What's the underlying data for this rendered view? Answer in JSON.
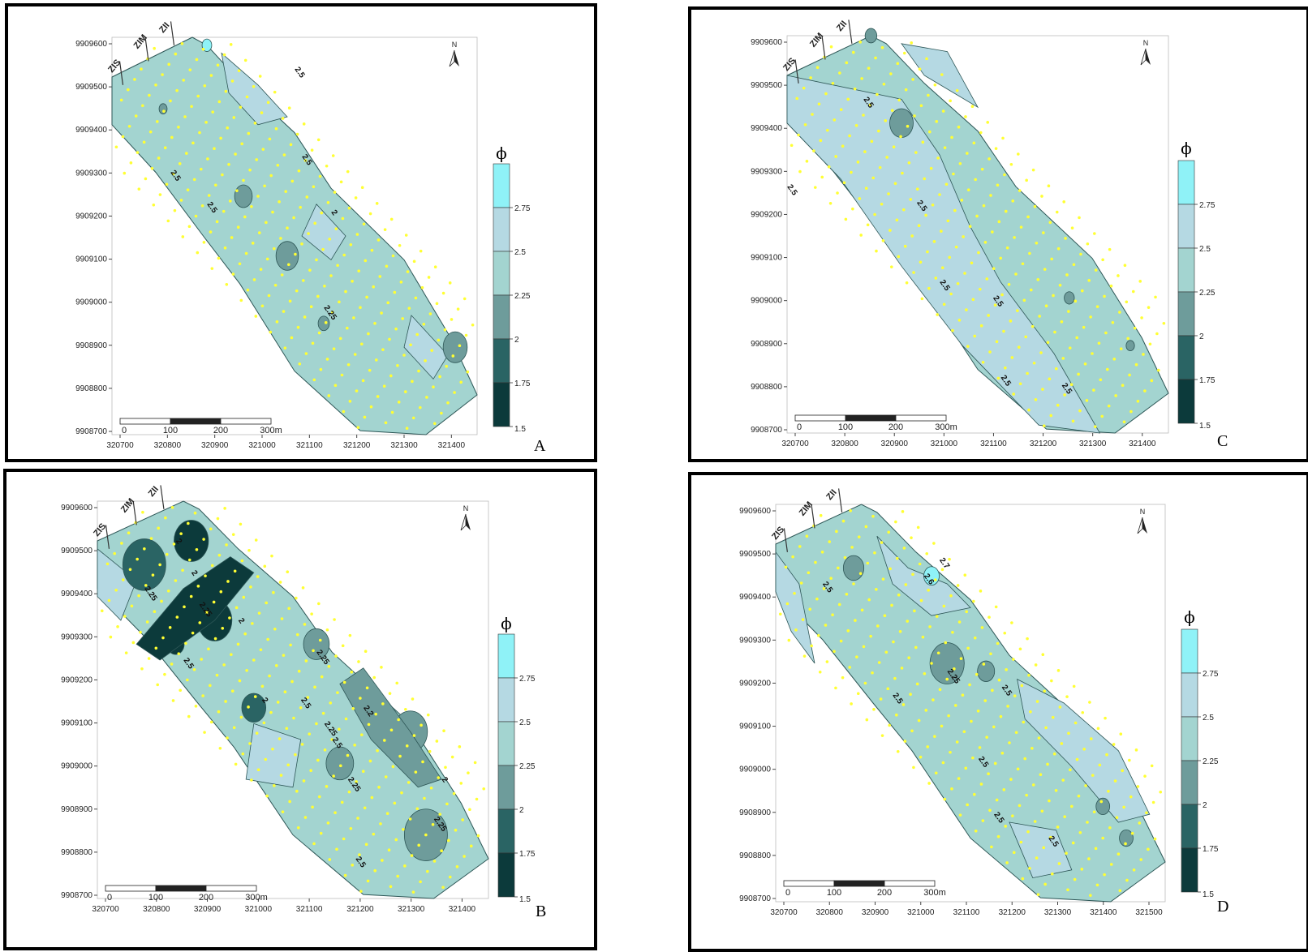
{
  "colors": {
    "c1": "#0c3a3b",
    "c2": "#2a6464",
    "c3": "#6e9c9b",
    "c4": "#a3d4d0",
    "c5": "#b5d9e3",
    "c6": "#8ff2f7",
    "dots": "#ffff33",
    "stroke": "#2d5656"
  },
  "axis": {
    "y_ticks": [
      "9909600",
      "9909500",
      "9909400",
      "9909300",
      "9909200",
      "9909100",
      "9909000",
      "9908900",
      "9908800",
      "9908700"
    ],
    "x_ticks_a": [
      "320700",
      "320800",
      "320900",
      "321000",
      "321100",
      "321200",
      "321300",
      "321400"
    ],
    "x_ticks_d": [
      "320700",
      "320800",
      "320900",
      "321000",
      "321100",
      "321200",
      "321300",
      "321400",
      "321500"
    ]
  },
  "scale_bar": {
    "labels": [
      "0",
      "100",
      "200",
      "300m"
    ]
  },
  "zones": [
    "ZIS",
    "ZIM",
    "ZII"
  ],
  "north_label": "N",
  "legend": {
    "symbol": "ϕ",
    "levels": [
      "2.75",
      "2.5",
      "2.25",
      "2",
      "1.75",
      "1.5"
    ]
  },
  "panels": [
    {
      "letter": "A",
      "contour_labels": [
        "2.5",
        "2.5",
        "2.5",
        "2.5",
        "2",
        "2.25"
      ]
    },
    {
      "letter": "B",
      "contour_labels": [
        "2",
        "2",
        "2.25",
        "2.25",
        "2",
        "2.5",
        "2.25",
        "2",
        "2.5",
        "2.25",
        "2.2",
        "2.5",
        "2.25",
        "2",
        "2.5",
        "2.25"
      ]
    },
    {
      "letter": "C",
      "contour_labels": [
        "2.5",
        "2.5",
        "2.5",
        "2.5",
        "2.5",
        "2.5",
        "2.5"
      ]
    },
    {
      "letter": "D",
      "contour_labels": [
        "2.5",
        "2.6",
        "2.7",
        "2.25",
        "2.5",
        "2.5",
        "2.5",
        "2.5",
        "2.5"
      ]
    }
  ]
}
